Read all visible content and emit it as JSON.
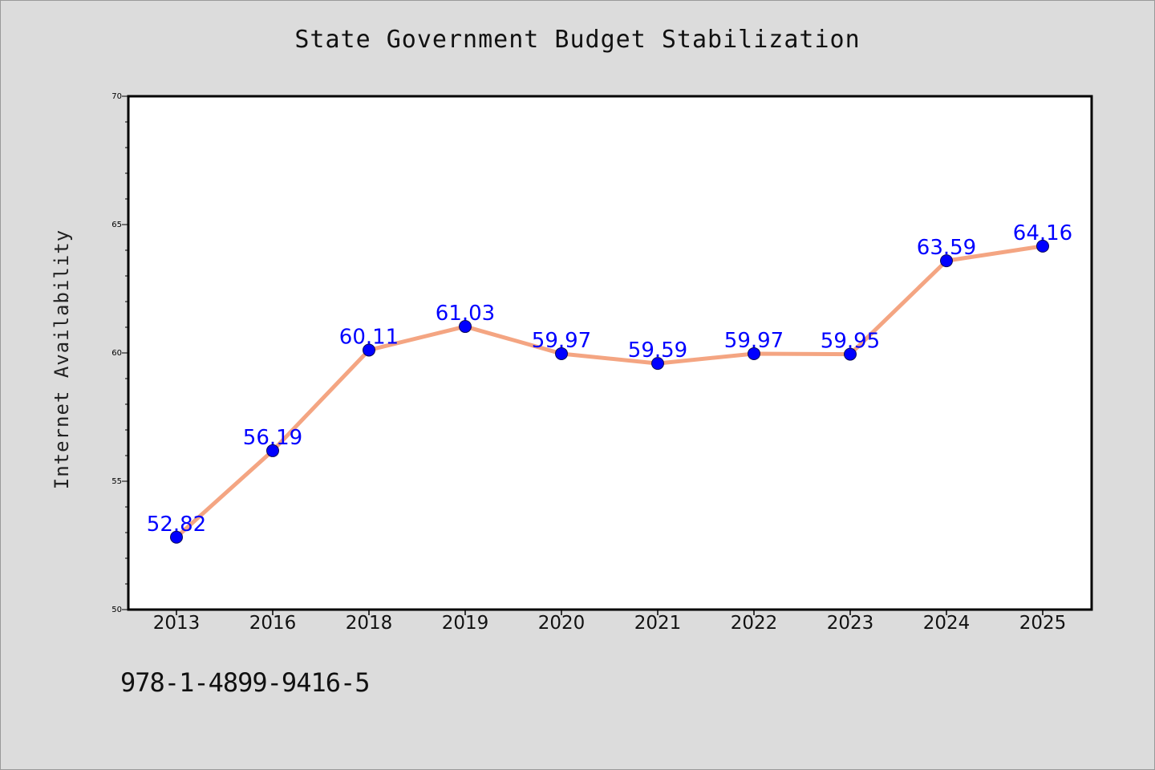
{
  "chart_data": {
    "type": "line",
    "title": "State Government Budget Stabilization",
    "ylabel": "Internet Availability",
    "xlabel": "",
    "categories": [
      "2013",
      "2016",
      "2018",
      "2019",
      "2020",
      "2021",
      "2022",
      "2023",
      "2024",
      "2025"
    ],
    "series": [
      {
        "values": [
          52.82,
          56.19,
          60.11,
          61.03,
          59.97,
          59.59,
          59.97,
          59.95,
          63.59,
          64.16
        ],
        "labels": [
          "52.82",
          "56.19",
          "60.11",
          "61.03",
          "59.97",
          "59.59",
          "59.97",
          "59.95",
          "63.59",
          "64.16"
        ],
        "line_color": "#f4a582",
        "marker_color": "#0000ff",
        "label_color": "#0000ff"
      }
    ],
    "ylim": [
      50,
      70
    ],
    "yticks": [
      "50",
      "55",
      "60",
      "65",
      "70"
    ],
    "grid": false,
    "plot_background": "#ffffff",
    "page_background": "#dcdcdc"
  },
  "footer": {
    "isbn": "978-1-4899-9416-5"
  }
}
